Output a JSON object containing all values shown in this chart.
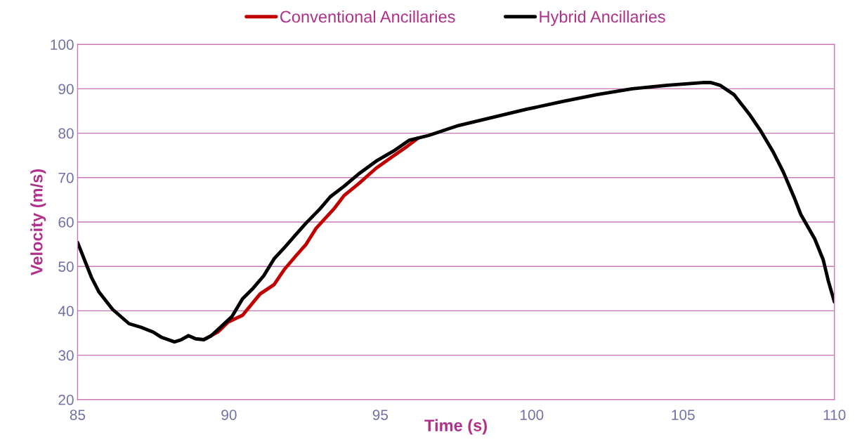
{
  "chart_data": {
    "type": "line",
    "xlabel": "Time (s)",
    "ylabel": "Velocity (m/s)",
    "xlim": [
      85,
      110
    ],
    "ylim": [
      20,
      100
    ],
    "xticks": [
      85,
      90,
      95,
      100,
      105,
      110
    ],
    "yticks": [
      20,
      30,
      40,
      50,
      60,
      70,
      80,
      90,
      100
    ],
    "grid": "y",
    "legend": "top",
    "series": [
      {
        "name": "Conventional Ancillaries",
        "color": "#c00000",
        "x": [
          89.17,
          89.63,
          89.98,
          90.45,
          90.8,
          91.03,
          91.49,
          91.84,
          92.19,
          92.54,
          92.88,
          93.46,
          93.81,
          94.28,
          94.86,
          95.44,
          95.9,
          96.25
        ],
        "values": [
          33.5,
          35.2,
          37.5,
          39,
          41.9,
          43.8,
          45.9,
          49.4,
          52.2,
          54.9,
          58.6,
          62.9,
          66,
          68.6,
          72.1,
          74.9,
          77.1,
          78.9
        ]
      },
      {
        "name": "Hybrid Ancillaries",
        "color": "#000000",
        "x": [
          85,
          85.46,
          85.7,
          86.16,
          86.7,
          87.09,
          87.5,
          87.78,
          88.2,
          88.43,
          88.66,
          88.9,
          89.17,
          89.4,
          89.75,
          90.1,
          90.45,
          90.8,
          91.15,
          91.49,
          91.84,
          92.19,
          92.54,
          93,
          93.35,
          93.81,
          94.28,
          94.86,
          95.44,
          95.95,
          96.6,
          97.52,
          98.68,
          99.84,
          101,
          102.16,
          103.32,
          104.48,
          105.64,
          105.92,
          106.22,
          106.68,
          107.22,
          107.54,
          107.96,
          108.31,
          108.66,
          108.89,
          109.35,
          109.63,
          109.8,
          110
        ],
        "values": [
          55.4,
          47.5,
          44.3,
          40.3,
          37.1,
          36.3,
          35.2,
          34,
          33,
          33.5,
          34.4,
          33.7,
          33.5,
          34.3,
          36.5,
          38.7,
          42.7,
          45.1,
          47.9,
          51.7,
          54.3,
          57,
          59.7,
          62.9,
          65.7,
          68.1,
          70.8,
          73.7,
          76,
          78.4,
          79.5,
          81.6,
          83.5,
          85.4,
          87.1,
          88.7,
          90,
          90.8,
          91.4,
          91.4,
          90.8,
          88.7,
          84,
          80.8,
          76,
          71.3,
          65.7,
          61.7,
          56.2,
          51.5,
          46.7,
          42
        ]
      }
    ]
  }
}
